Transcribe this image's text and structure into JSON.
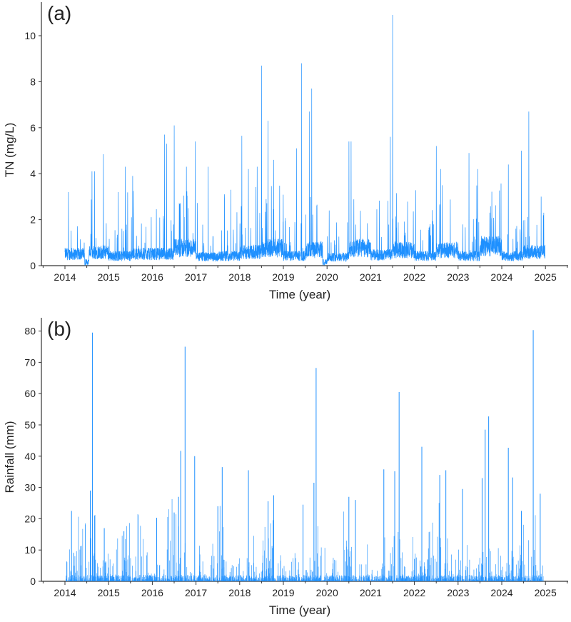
{
  "chart_data": [
    {
      "type": "line",
      "panel_label": "(a)",
      "xlabel": "Time (year)",
      "ylabel": "TN (mg/L)",
      "xlim": [
        2013.46,
        2025.5
      ],
      "ylim": [
        0,
        11.5
      ],
      "xticks": [
        "2014",
        "2015",
        "2016",
        "2017",
        "2018",
        "2019",
        "2020",
        "2021",
        "2022",
        "2023",
        "2024",
        "2025"
      ],
      "yticks": [
        "0",
        "2",
        "4",
        "6",
        "8",
        "10"
      ],
      "color": "#1e90ff",
      "baseline_by_half_year": [
        [
          2014.0,
          0.6
        ],
        [
          2014.5,
          0.7
        ],
        [
          2015.0,
          0.5
        ],
        [
          2015.5,
          0.6
        ],
        [
          2016.0,
          0.6
        ],
        [
          2016.5,
          0.9
        ],
        [
          2017.0,
          0.45
        ],
        [
          2017.5,
          0.5
        ],
        [
          2018.0,
          0.7
        ],
        [
          2018.5,
          0.9
        ],
        [
          2019.0,
          0.5
        ],
        [
          2019.5,
          0.8
        ],
        [
          2020.0,
          0.45
        ],
        [
          2020.5,
          0.9
        ],
        [
          2021.0,
          0.55
        ],
        [
          2021.5,
          0.8
        ],
        [
          2022.0,
          0.5
        ],
        [
          2022.5,
          0.8
        ],
        [
          2023.0,
          0.5
        ],
        [
          2023.5,
          1.0
        ],
        [
          2024.0,
          0.5
        ],
        [
          2024.5,
          0.7
        ],
        [
          2025.0,
          0.3
        ]
      ],
      "gaps": [
        [
          2014.45,
          2014.55
        ],
        [
          2019.9,
          2020.0
        ]
      ],
      "peaks": [
        [
          2014.08,
          3.2
        ],
        [
          2014.62,
          4.1
        ],
        [
          2014.68,
          4.1
        ],
        [
          2014.88,
          4.85
        ],
        [
          2015.22,
          3.2
        ],
        [
          2015.38,
          4.3
        ],
        [
          2015.55,
          3.9
        ],
        [
          2016.28,
          5.7
        ],
        [
          2016.33,
          5.3
        ],
        [
          2016.5,
          6.1
        ],
        [
          2016.78,
          4.3
        ],
        [
          2016.98,
          5.4
        ],
        [
          2017.28,
          4.3
        ],
        [
          2017.65,
          3.1
        ],
        [
          2017.8,
          3.3
        ],
        [
          2018.05,
          5.65
        ],
        [
          2018.2,
          4.2
        ],
        [
          2018.4,
          4.3
        ],
        [
          2018.5,
          8.7
        ],
        [
          2018.65,
          6.3
        ],
        [
          2018.78,
          4.6
        ],
        [
          2019.3,
          5.1
        ],
        [
          2019.42,
          8.8
        ],
        [
          2019.6,
          6.7
        ],
        [
          2019.65,
          7.7
        ],
        [
          2020.05,
          2.4
        ],
        [
          2020.5,
          5.4
        ],
        [
          2020.55,
          5.4
        ],
        [
          2021.45,
          5.6
        ],
        [
          2021.5,
          10.9
        ],
        [
          2022.5,
          5.2
        ],
        [
          2022.6,
          4.2
        ],
        [
          2023.25,
          4.9
        ],
        [
          2023.45,
          4.2
        ],
        [
          2024.15,
          4.4
        ],
        [
          2024.45,
          5.0
        ],
        [
          2024.62,
          6.7
        ],
        [
          2024.9,
          3.0
        ]
      ]
    },
    {
      "type": "bar",
      "panel_label": "(b)",
      "xlabel": "Time (year)",
      "ylabel": "Rainfall (mm)",
      "xlim": [
        2013.46,
        2025.5
      ],
      "ylim": [
        0,
        84
      ],
      "xticks": [
        "2014",
        "2015",
        "2016",
        "2017",
        "2018",
        "2019",
        "2020",
        "2021",
        "2022",
        "2023",
        "2024",
        "2025"
      ],
      "yticks": [
        "0",
        "10",
        "20",
        "30",
        "40",
        "50",
        "60",
        "70",
        "80"
      ],
      "color": "#1e90ff",
      "peaks": [
        [
          2014.15,
          22.5
        ],
        [
          2014.58,
          29
        ],
        [
          2014.63,
          79.5
        ],
        [
          2014.68,
          21
        ],
        [
          2014.9,
          17
        ],
        [
          2015.35,
          16
        ],
        [
          2016.1,
          20.3
        ],
        [
          2016.5,
          22
        ],
        [
          2016.6,
          27
        ],
        [
          2016.65,
          41.7
        ],
        [
          2016.75,
          75
        ],
        [
          2016.97,
          40
        ],
        [
          2017.5,
          24
        ],
        [
          2017.6,
          36.5
        ],
        [
          2018.2,
          35.5
        ],
        [
          2018.65,
          25.6
        ],
        [
          2018.78,
          27.5
        ],
        [
          2019.45,
          24.5
        ],
        [
          2019.7,
          31.5
        ],
        [
          2019.75,
          68.2
        ],
        [
          2020.5,
          27
        ],
        [
          2020.65,
          26
        ],
        [
          2021.3,
          35.8
        ],
        [
          2021.55,
          35.2
        ],
        [
          2021.65,
          60.5
        ],
        [
          2022.17,
          43
        ],
        [
          2022.58,
          34
        ],
        [
          2022.72,
          35.5
        ],
        [
          2023.1,
          29.5
        ],
        [
          2023.55,
          33
        ],
        [
          2023.62,
          48.5
        ],
        [
          2023.7,
          52.7
        ],
        [
          2024.15,
          42.7
        ],
        [
          2024.25,
          33.2
        ],
        [
          2024.45,
          22.5
        ],
        [
          2024.72,
          80.3
        ],
        [
          2024.88,
          28
        ]
      ]
    }
  ]
}
